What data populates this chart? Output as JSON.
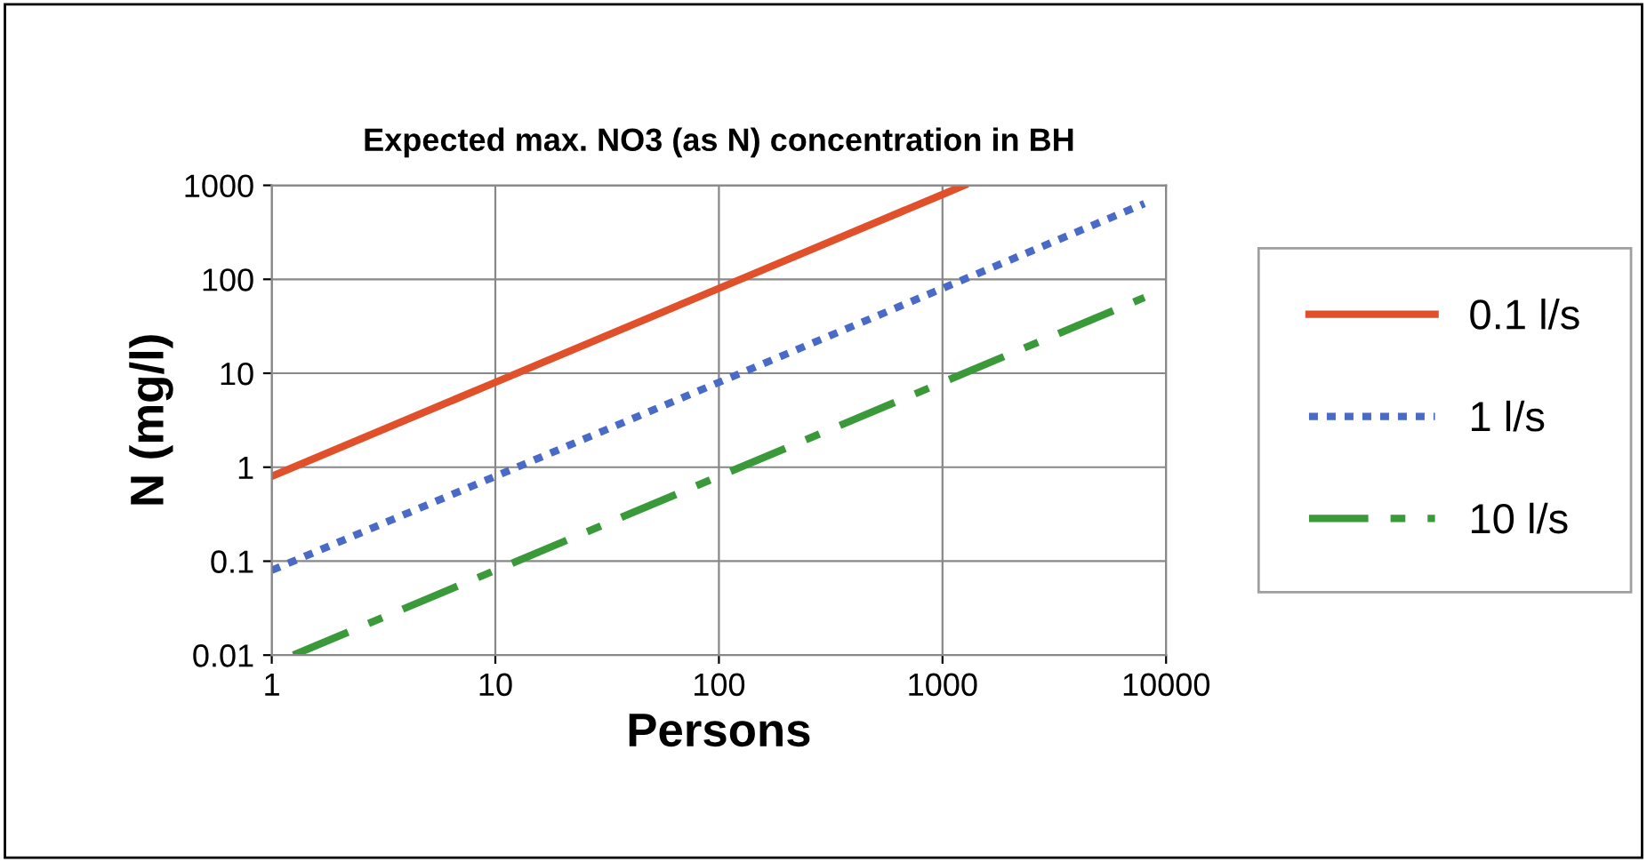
{
  "chart_data": {
    "type": "line",
    "title": "Expected max. NO3 (as N) concentration in BH",
    "xlabel": "Persons",
    "ylabel": "N (mg/l)",
    "log": "xy",
    "grid": true,
    "legend": "right",
    "marker": "none",
    "xlim": [
      1,
      10000
    ],
    "xticks": [
      1,
      10,
      100,
      1000,
      10000
    ],
    "ylim": [
      0.01,
      1000
    ],
    "yticks": [
      0.01,
      0.1,
      1,
      10,
      100,
      1000
    ],
    "series": [
      {
        "name": "0.1 l/s",
        "color": "#e0502a",
        "line_style": "solid",
        "x": [
          1,
          10,
          100,
          1000,
          1250
        ],
        "values": [
          0.8,
          8,
          80,
          800,
          1000
        ]
      },
      {
        "name": "1 l/s",
        "color": "#4a6ac8",
        "line_style": "dotted",
        "x": [
          1,
          10,
          100,
          1000,
          8000
        ],
        "values": [
          0.08,
          0.8,
          8,
          80,
          640
        ]
      },
      {
        "name": "10 l/s",
        "color": "#3a9a3a",
        "line_style": "dashdot",
        "x": [
          1.25,
          10,
          100,
          1000,
          8000
        ],
        "values": [
          0.01,
          0.08,
          0.8,
          8,
          64
        ]
      }
    ]
  }
}
